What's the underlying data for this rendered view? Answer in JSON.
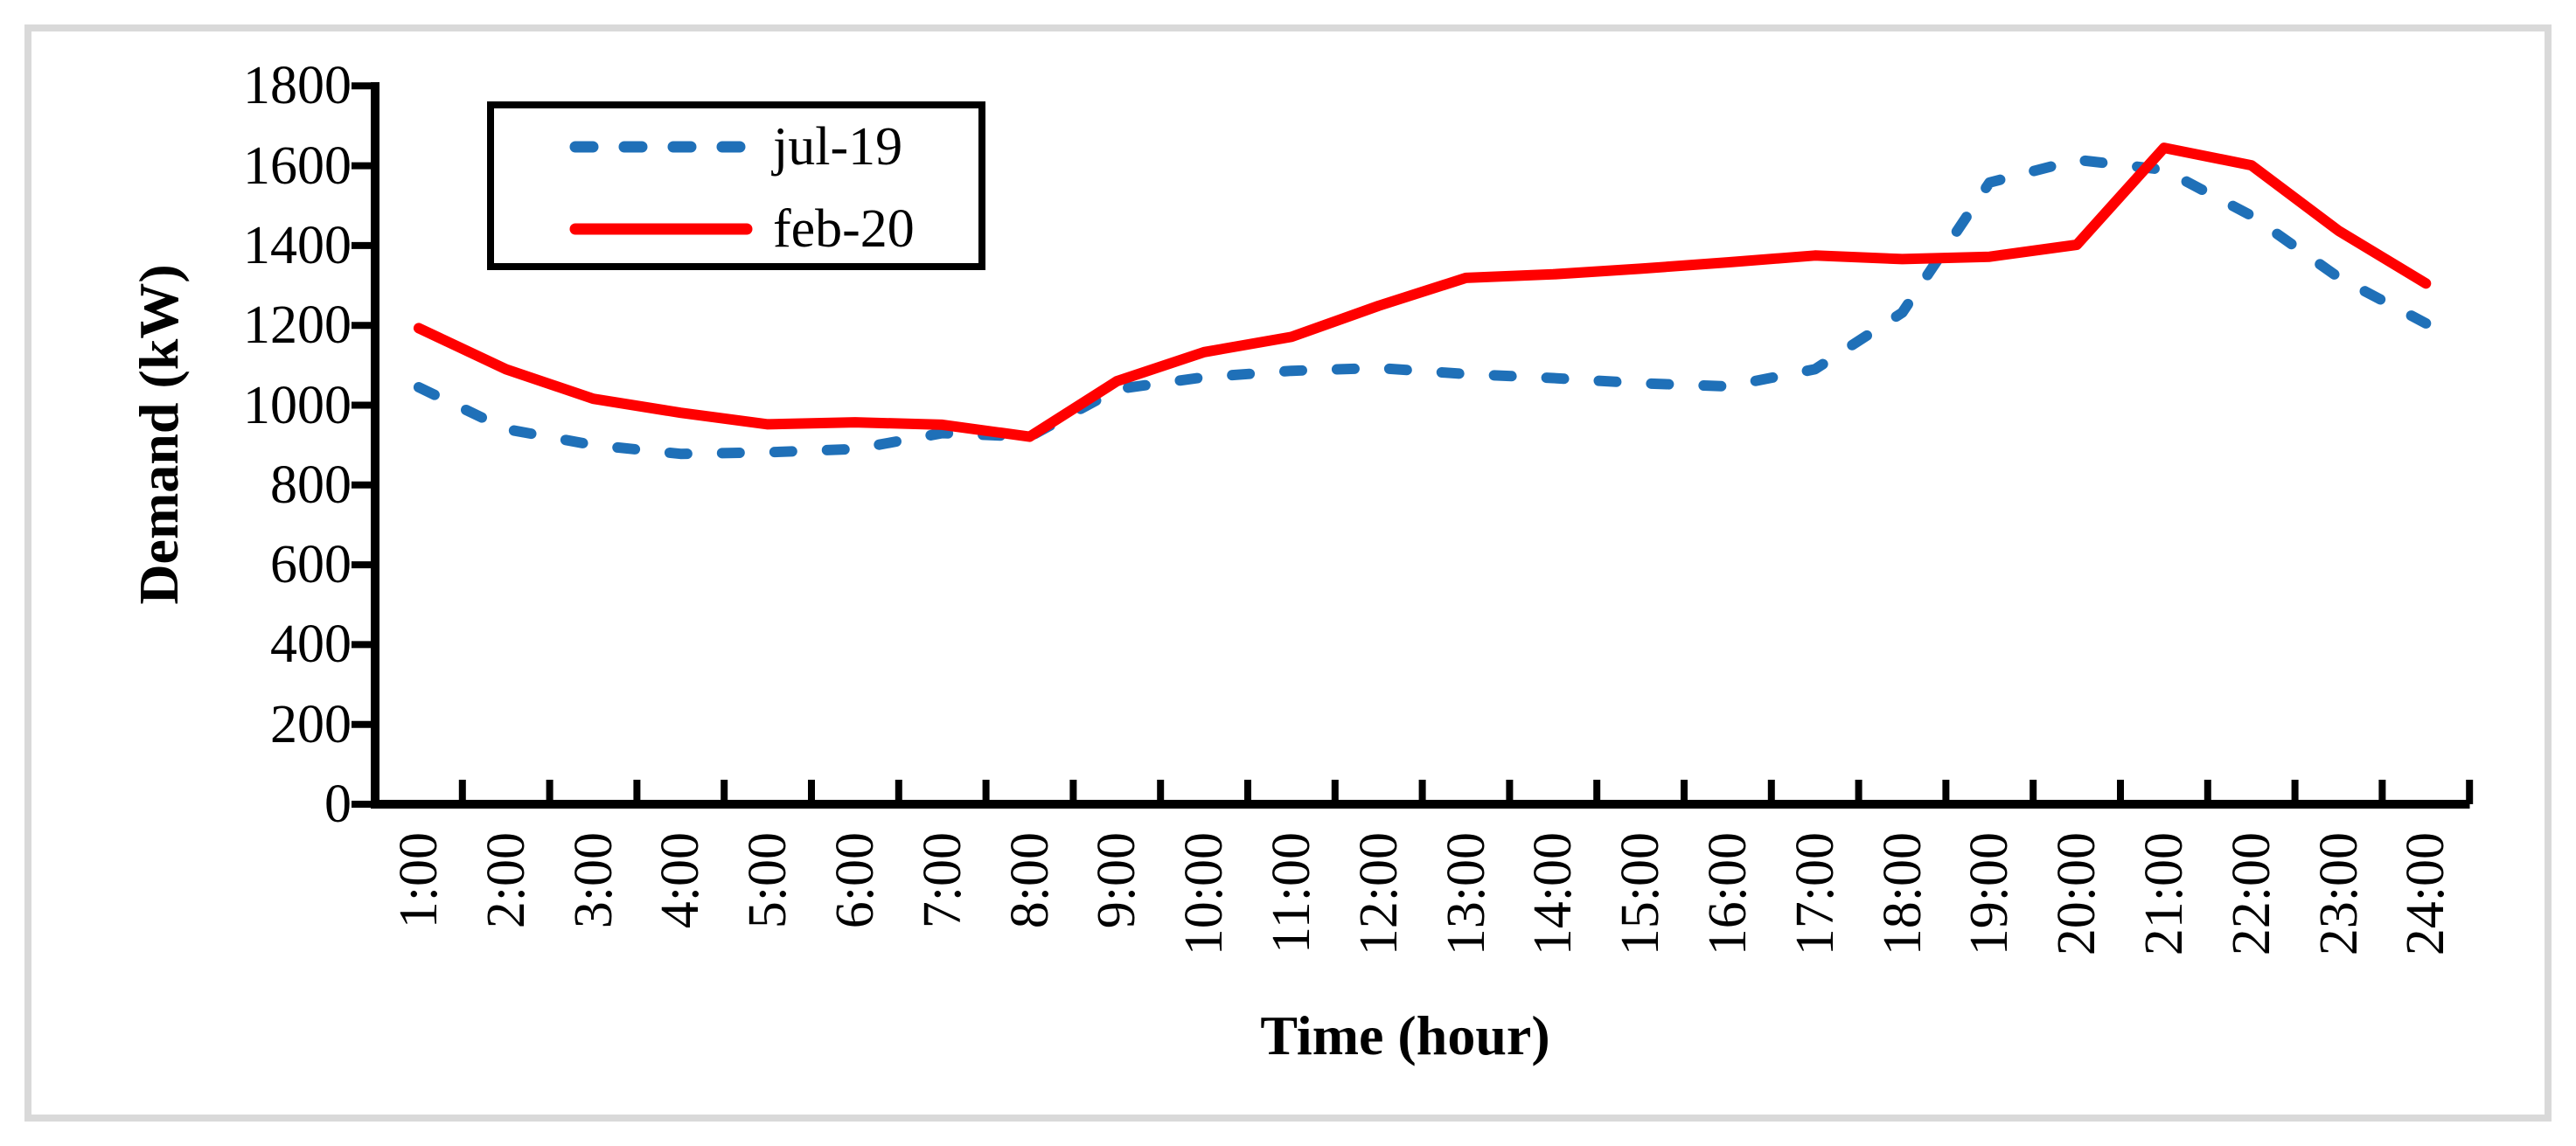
{
  "figure": {
    "background_color": "#ffffff",
    "frame_color": "#d9d9d9",
    "axis_color": "#000000"
  },
  "chart_data": {
    "type": "line",
    "title": "",
    "xlabel": "Time (hour)",
    "ylabel": "Demand (kW)",
    "ylim": [
      0,
      1800
    ],
    "y_ticks": [
      0,
      200,
      400,
      600,
      800,
      1000,
      1200,
      1400,
      1600,
      1800
    ],
    "grid": false,
    "legend_position": "top-left-inside",
    "categories": [
      "1:00",
      "2:00",
      "3:00",
      "4:00",
      "5:00",
      "6:00",
      "7:00",
      "8:00",
      "9:00",
      "10:00",
      "11:00",
      "12:00",
      "13:00",
      "14:00",
      "15:00",
      "16:00",
      "17:00",
      "18:00",
      "19:00",
      "20:00",
      "21:00",
      "22:00",
      "23:00",
      "24:00"
    ],
    "series": [
      {
        "name": "jul-19",
        "style": "dashed",
        "color": "#1f70b8",
        "values": [
          1045,
          940,
          900,
          878,
          882,
          890,
          930,
          921,
          1040,
          1070,
          1086,
          1093,
          1078,
          1068,
          1055,
          1047,
          1090,
          1232,
          1558,
          1615,
          1590,
          1475,
          1320,
          1205
        ]
      },
      {
        "name": "feb-20",
        "style": "solid",
        "color": "#ff0000",
        "values": [
          1193,
          1090,
          1016,
          981,
          952,
          957,
          951,
          921,
          1060,
          1133,
          1171,
          1249,
          1319,
          1328,
          1342,
          1358,
          1375,
          1366,
          1372,
          1402,
          1645,
          1601,
          1437,
          1305
        ]
      }
    ]
  }
}
